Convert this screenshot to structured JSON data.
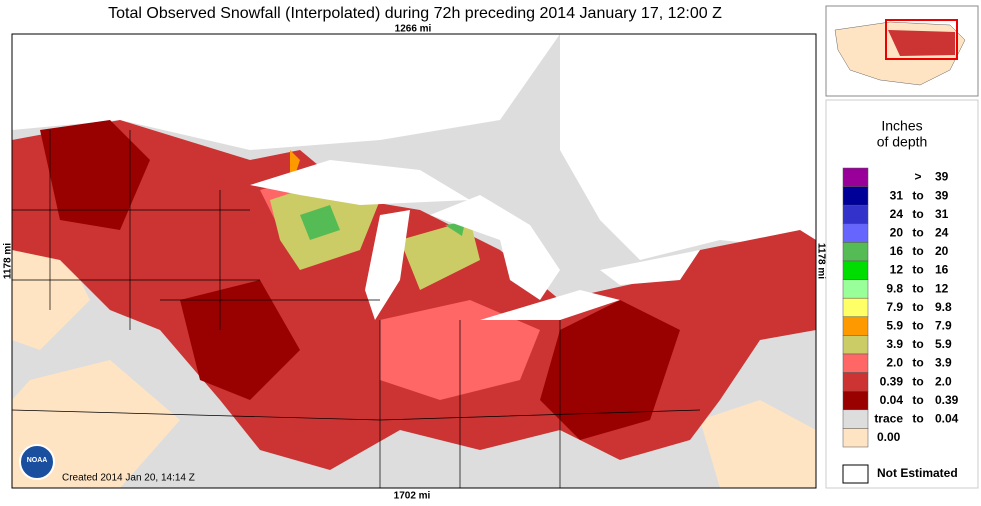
{
  "header": {
    "title": "Total Observed Snowfall (Interpolated) during 72h preceding 2014 January 17, 12:00 Z"
  },
  "map": {
    "top_label": "1266 mi",
    "left_label": "1178 mi",
    "right_label": "1178 mi",
    "bottom_label": "1702 mi",
    "created": "Created 2014 Jan 20, 14:14 Z",
    "logo": "NOAA"
  },
  "legend": {
    "title_line1": "Inches",
    "title_line2": "of depth",
    "rows": [
      [
        ">",
        "39"
      ],
      [
        "31",
        "to",
        "39"
      ],
      [
        "24",
        "to",
        "31"
      ],
      [
        "20",
        "to",
        "24"
      ],
      [
        "16",
        "to",
        "20"
      ],
      [
        "12",
        "to",
        "16"
      ],
      [
        "9.8",
        "to",
        "12"
      ],
      [
        "7.9",
        "to",
        "9.8"
      ],
      [
        "5.9",
        "to",
        "7.9"
      ],
      [
        "3.9",
        "to",
        "5.9"
      ],
      [
        "2.0",
        "to",
        "3.9"
      ],
      [
        "0.39",
        "to",
        "2.0"
      ],
      [
        "0.04",
        "to",
        "0.39"
      ],
      [
        "trace",
        "to",
        "0.04"
      ],
      [
        "0.00"
      ]
    ],
    "colors": [
      "#990099",
      "#000099",
      "#3333cc",
      "#6666ff",
      "#55bb55",
      "#00dd00",
      "#99ff99",
      "#ffff66",
      "#ff9900",
      "#cccc66",
      "#ff6666",
      "#cc3333",
      "#990000",
      "#dddddd",
      "#ffe4c4"
    ],
    "not_estimated": "Not Estimated"
  }
}
